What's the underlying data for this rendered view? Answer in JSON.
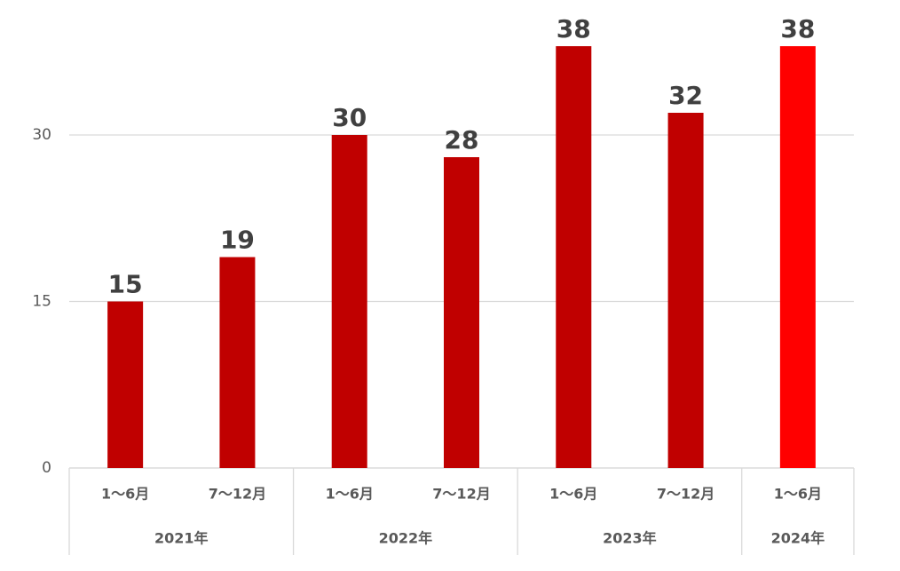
{
  "chart_data": {
    "type": "bar",
    "groups": [
      {
        "name": "2021年",
        "categories": [
          "1～6月",
          "7～12月"
        ],
        "values": [
          15,
          19
        ],
        "colors": [
          "#c00000",
          "#c00000"
        ]
      },
      {
        "name": "2022年",
        "categories": [
          "1～6月",
          "7～12月"
        ],
        "values": [
          30,
          28
        ],
        "colors": [
          "#c00000",
          "#c00000"
        ]
      },
      {
        "name": "2023年",
        "categories": [
          "1～6月",
          "7～12月"
        ],
        "values": [
          38,
          32
        ],
        "colors": [
          "#c00000",
          "#c00000"
        ]
      },
      {
        "name": "2024年",
        "categories": [
          "1～6月"
        ],
        "values": [
          38
        ],
        "colors": [
          "#ff0000"
        ]
      }
    ],
    "ylim": [
      0,
      40
    ],
    "yticks": [
      0,
      15,
      30
    ],
    "grid": true
  }
}
